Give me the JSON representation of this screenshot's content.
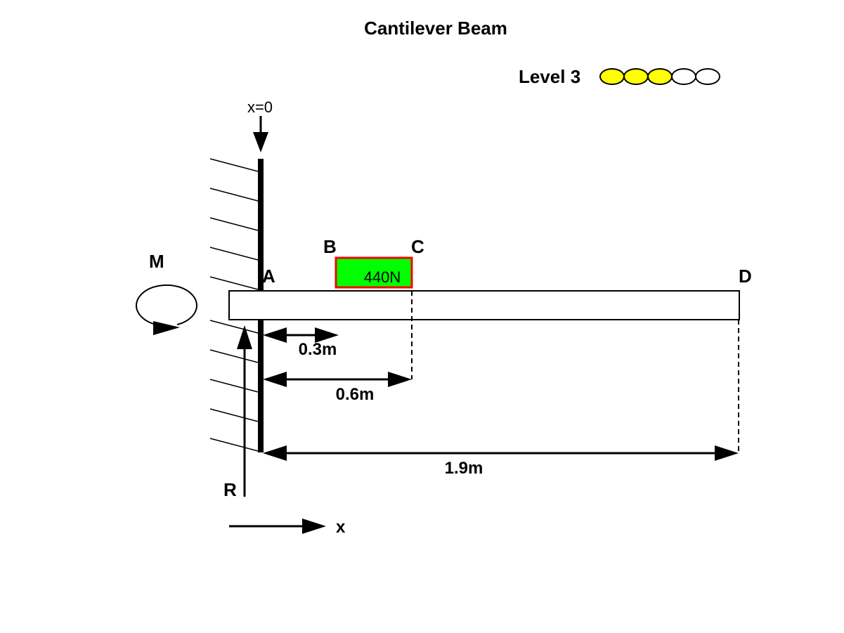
{
  "title": "Cantilever Beam",
  "level": {
    "label": "Level 3",
    "value": 3,
    "max": 5,
    "filled_color": "#ffff00",
    "empty_color": "#ffffff"
  },
  "origin_label": "x=0",
  "points": {
    "a": "A",
    "b": "B",
    "c": "C",
    "d": "D"
  },
  "moment_label": "M",
  "reaction_label": "R",
  "x_axis_label": "x",
  "load": {
    "label": "440N",
    "fill_color": "#00ff00",
    "border_color": "#ff0000"
  },
  "dimensions": {
    "ab": "0.3m",
    "ac": "0.6m",
    "ad": "1.9m"
  }
}
